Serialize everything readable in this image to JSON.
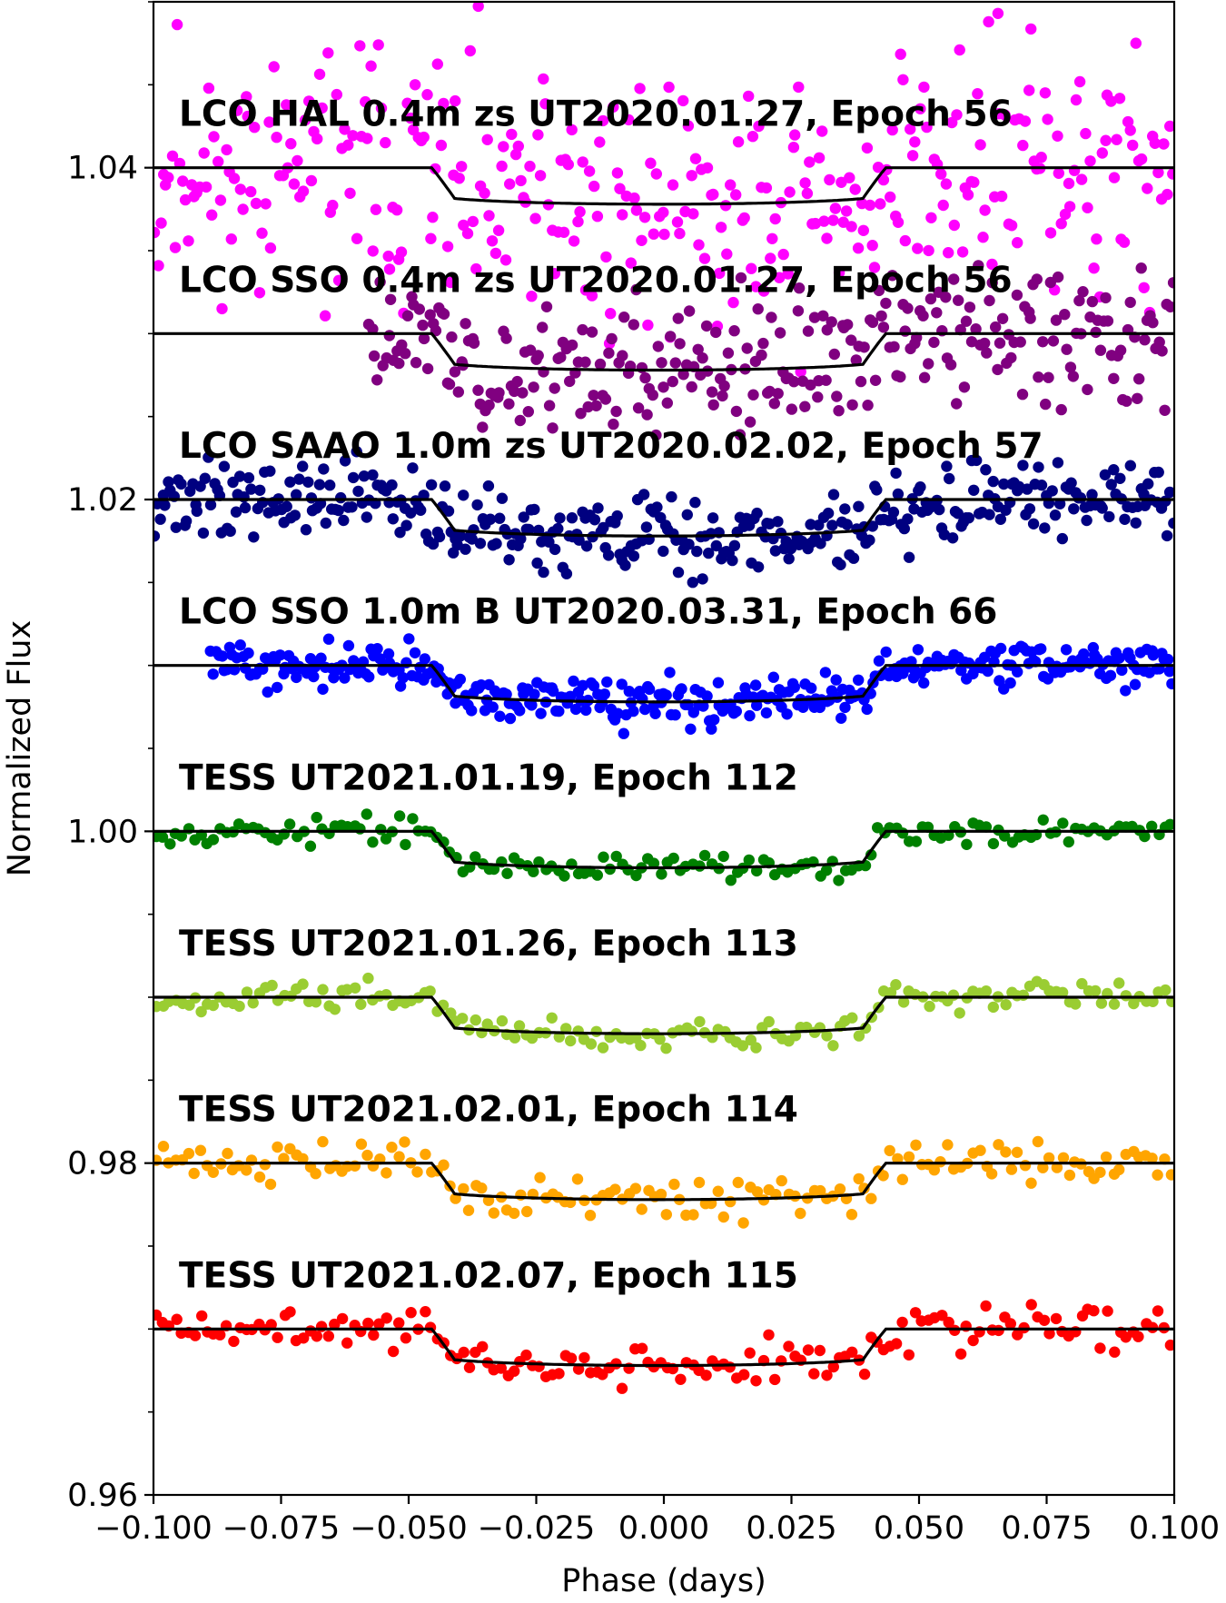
{
  "chart_data": {
    "type": "scatter",
    "xlabel": "Phase (days)",
    "ylabel": "Normalized Flux",
    "xlim": [
      -0.1,
      0.1
    ],
    "ylim": [
      0.96,
      1.05
    ],
    "x_ticks": [
      -0.1,
      -0.075,
      -0.05,
      -0.025,
      0.0,
      0.025,
      0.05,
      0.075,
      0.1
    ],
    "x_tick_labels": [
      "−0.100",
      "−0.075",
      "−0.050",
      "−0.025",
      "0.000",
      "0.025",
      "0.050",
      "0.075",
      "0.100"
    ],
    "y_ticks": [
      0.96,
      0.98,
      1.0,
      1.02,
      1.04
    ],
    "y_tick_labels": [
      "0.96",
      "0.98",
      "1.00",
      "1.02",
      "1.04"
    ],
    "y_minor_step": 0.005,
    "grid": false,
    "legend": "none",
    "transit_model": {
      "t_ingress_start": -0.0455,
      "t_ingress_end": -0.041,
      "t_egress_start": 0.039,
      "t_egress_end": 0.0435,
      "depth": 0.0022
    },
    "series": [
      {
        "name": "LCO HAL 0.4m zs UT2020.01.27, Epoch 56",
        "color": "#ff00ff",
        "baseline": 1.04,
        "scatter": 0.0055,
        "x_start": -0.1,
        "n": 360,
        "seed": 11
      },
      {
        "name": "LCO SSO 0.4m zs UT2020.01.27, Epoch 56",
        "color": "#800080",
        "baseline": 1.03,
        "scatter": 0.0028,
        "x_start": -0.058,
        "n": 290,
        "seed": 23
      },
      {
        "name": "LCO SAAO 1.0m zs UT2020.02.02, Epoch 57",
        "color": "#000080",
        "baseline": 1.02,
        "scatter": 0.0016,
        "x_start": -0.1,
        "n": 380,
        "seed": 37
      },
      {
        "name": "LCO SSO 1.0m B UT2020.03.31, Epoch 66",
        "color": "#0000ff",
        "baseline": 1.01,
        "scatter": 0.0009,
        "x_start": -0.089,
        "n": 360,
        "seed": 41
      },
      {
        "name": "TESS UT2021.01.19, Epoch 112",
        "color": "#008000",
        "baseline": 1.0,
        "scatter": 0.00055,
        "x_start": -0.1,
        "n": 160,
        "seed": 53
      },
      {
        "name": "TESS UT2021.01.26, Epoch 113",
        "color": "#9acd32",
        "baseline": 0.99,
        "scatter": 0.0006,
        "x_start": -0.1,
        "n": 160,
        "seed": 67
      },
      {
        "name": "TESS UT2021.02.01, Epoch 114",
        "color": "#ffa500",
        "baseline": 0.98,
        "scatter": 0.0009,
        "x_start": -0.1,
        "n": 160,
        "seed": 71
      },
      {
        "name": "TESS UT2021.02.07, Epoch 115",
        "color": "#ff0000",
        "baseline": 0.97,
        "scatter": 0.0009,
        "x_start": -0.1,
        "n": 160,
        "seed": 89
      }
    ]
  }
}
